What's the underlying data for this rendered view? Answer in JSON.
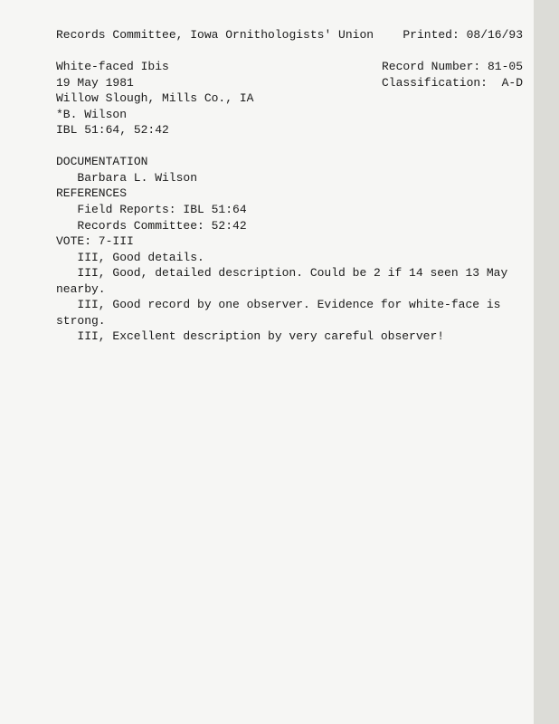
{
  "header": {
    "org": "Records Committee, Iowa Ornithologists' Union",
    "printed_label": "Printed: 08/16/93"
  },
  "meta": {
    "species": "White-faced Ibis",
    "record_number_label": "Record Number: 81-05",
    "date": "19 May 1981",
    "classification_label": "Classification:  A-D",
    "location": "Willow Slough, Mills Co., IA",
    "observer": "*B. Wilson",
    "ibl": "IBL 51:64, 52:42"
  },
  "sections": {
    "documentation_label": "DOCUMENTATION",
    "documentation_name": "Barbara L. Wilson",
    "references_label": "REFERENCES",
    "ref1": "Field Reports: IBL 51:64",
    "ref2": "Records Committee: 52:42",
    "vote_label": "VOTE: 7-III",
    "vote1": "III, Good details.",
    "vote2a": "III, Good, detailed description. Could be 2 if 14 seen 13 May",
    "vote2b": "nearby.",
    "vote3a": "III, Good record by one observer. Evidence for white-face is",
    "vote3b": "strong.",
    "vote4": "III, Excellent description by very careful observer!"
  }
}
